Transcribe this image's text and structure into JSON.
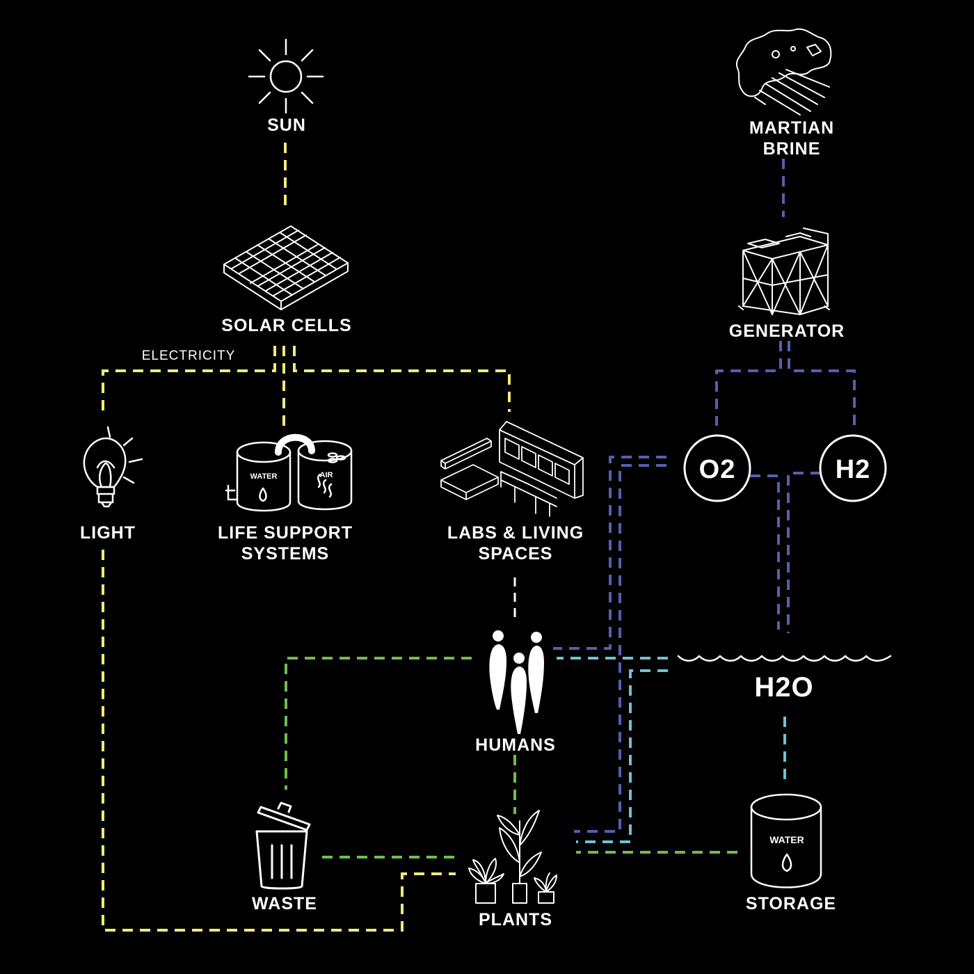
{
  "nodes": {
    "sun": "SUN",
    "martian_brine_line1": "MARTIAN",
    "martian_brine_line2": "BRINE",
    "solar_cells": "SOLAR CELLS",
    "generator": "GENERATOR",
    "electricity": "ELECTRICITY",
    "light": "LIGHT",
    "life_support_line1": "LIFE SUPPORT",
    "life_support_line2": "SYSTEMS",
    "life_support_water_tank": "WATER",
    "life_support_air_tank": "AIR",
    "labs_line1": "LABS & LIVING",
    "labs_line2": "SPACES",
    "o2": "O2",
    "h2": "H2",
    "h2o": "H2O",
    "humans": "HUMANS",
    "waste": "WASTE",
    "plants": "PLANTS",
    "storage": "STORAGE",
    "storage_tank": "WATER"
  },
  "colors": {
    "background": "#000000",
    "energy_flow": "#f2ea7a",
    "gas_flow": "#5261b0",
    "water_flow": "#6cc4d4",
    "organic_flow": "#6fbd4e",
    "icon_stroke": "#ffffff"
  },
  "icons": [
    "sun-icon",
    "brine-splash-icon",
    "solar-panel-icon",
    "generator-icon",
    "light-bulb-icon",
    "tank-icon",
    "labs-icon",
    "humans-icon",
    "water-wave-icon",
    "trash-can-icon",
    "plants-icon",
    "water-storage-icon"
  ]
}
